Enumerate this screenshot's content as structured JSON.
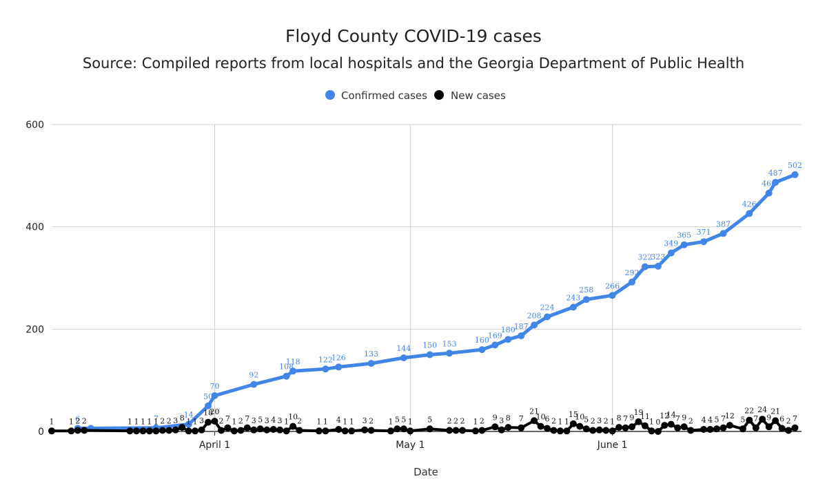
{
  "chart_data": {
    "type": "line",
    "title": "Floyd County COVID-19 cases",
    "subtitle": "Source: Compiled reports from local hospitals and the Georgia Department of Public Health",
    "xlabel": "Date",
    "ylabel": "",
    "ylim": [
      0,
      600
    ],
    "yticks": [
      0,
      200,
      400,
      600
    ],
    "xlim": [
      "2020-03-07",
      "2020-06-30"
    ],
    "xticks": [
      {
        "date": "2020-04-01",
        "label": "April 1"
      },
      {
        "date": "2020-05-01",
        "label": "May 1"
      },
      {
        "date": "2020-06-01",
        "label": "June 1"
      }
    ],
    "grid": true,
    "legend_position": "top-center",
    "series": [
      {
        "name": "Confirmed cases",
        "color": "#4285e8",
        "points": [
          [
            "2020-03-11",
            6
          ],
          [
            "2020-03-13",
            6
          ],
          [
            "2020-03-23",
            7
          ],
          [
            "2020-03-28",
            14
          ],
          [
            "2020-03-31",
            50
          ],
          [
            "2020-04-01",
            70
          ],
          [
            "2020-04-07",
            92
          ],
          [
            "2020-04-12",
            108
          ],
          [
            "2020-04-13",
            118
          ],
          [
            "2020-04-18",
            122
          ],
          [
            "2020-04-20",
            126
          ],
          [
            "2020-04-25",
            133
          ],
          [
            "2020-04-30",
            144
          ],
          [
            "2020-05-04",
            150
          ],
          [
            "2020-05-07",
            153
          ],
          [
            "2020-05-12",
            160
          ],
          [
            "2020-05-14",
            169
          ],
          [
            "2020-05-16",
            180
          ],
          [
            "2020-05-18",
            187
          ],
          [
            "2020-05-20",
            208
          ],
          [
            "2020-05-22",
            224
          ],
          [
            "2020-05-26",
            243
          ],
          [
            "2020-05-28",
            258
          ],
          [
            "2020-06-01",
            266
          ],
          [
            "2020-06-04",
            292
          ],
          [
            "2020-06-06",
            322
          ],
          [
            "2020-06-08",
            323
          ],
          [
            "2020-06-10",
            349
          ],
          [
            "2020-06-12",
            365
          ],
          [
            "2020-06-15",
            371
          ],
          [
            "2020-06-18",
            387
          ],
          [
            "2020-06-22",
            426
          ],
          [
            "2020-06-25",
            466
          ],
          [
            "2020-06-26",
            487
          ],
          [
            "2020-06-29",
            502
          ]
        ],
        "labels": [
          [
            "2020-03-11",
            "6"
          ],
          [
            "2020-03-23",
            "7"
          ],
          [
            "2020-03-28",
            "14"
          ],
          [
            "2020-03-31",
            "50"
          ],
          [
            "2020-04-01",
            "70"
          ],
          [
            "2020-04-07",
            "92"
          ],
          [
            "2020-04-12",
            "108"
          ],
          [
            "2020-04-13",
            "118"
          ],
          [
            "2020-04-18",
            "122"
          ],
          [
            "2020-04-20",
            "126"
          ],
          [
            "2020-04-25",
            "133"
          ],
          [
            "2020-04-30",
            "144"
          ],
          [
            "2020-05-04",
            "150"
          ],
          [
            "2020-05-07",
            "153"
          ],
          [
            "2020-05-12",
            "160"
          ],
          [
            "2020-05-14",
            "169"
          ],
          [
            "2020-05-16",
            "180"
          ],
          [
            "2020-05-18",
            "187"
          ],
          [
            "2020-05-20",
            "208"
          ],
          [
            "2020-05-22",
            "224"
          ],
          [
            "2020-05-26",
            "243"
          ],
          [
            "2020-05-28",
            "258"
          ],
          [
            "2020-06-01",
            "266"
          ],
          [
            "2020-06-04",
            "292"
          ],
          [
            "2020-06-06",
            "322"
          ],
          [
            "2020-06-08",
            "323"
          ],
          [
            "2020-06-10",
            "349"
          ],
          [
            "2020-06-12",
            "365"
          ],
          [
            "2020-06-15",
            "371"
          ],
          [
            "2020-06-18",
            "387"
          ],
          [
            "2020-06-22",
            "426"
          ],
          [
            "2020-06-25",
            "466"
          ],
          [
            "2020-06-26",
            "487"
          ],
          [
            "2020-06-29",
            "502"
          ]
        ]
      },
      {
        "name": "New cases",
        "color": "#000000",
        "points": [
          [
            "2020-03-07",
            1
          ],
          [
            "2020-03-10",
            1
          ],
          [
            "2020-03-11",
            2
          ],
          [
            "2020-03-12",
            2
          ],
          [
            "2020-03-19",
            1
          ],
          [
            "2020-03-20",
            1
          ],
          [
            "2020-03-21",
            1
          ],
          [
            "2020-03-22",
            1
          ],
          [
            "2020-03-23",
            1
          ],
          [
            "2020-03-24",
            2
          ],
          [
            "2020-03-25",
            2
          ],
          [
            "2020-03-26",
            3
          ],
          [
            "2020-03-27",
            8
          ],
          [
            "2020-03-28",
            1
          ],
          [
            "2020-03-29",
            1
          ],
          [
            "2020-03-30",
            3
          ],
          [
            "2020-03-31",
            18
          ],
          [
            "2020-04-01",
            20
          ],
          [
            "2020-04-02",
            2
          ],
          [
            "2020-04-03",
            7
          ],
          [
            "2020-04-04",
            1
          ],
          [
            "2020-04-05",
            2
          ],
          [
            "2020-04-06",
            7
          ],
          [
            "2020-04-07",
            3
          ],
          [
            "2020-04-08",
            5
          ],
          [
            "2020-04-09",
            3
          ],
          [
            "2020-04-10",
            4
          ],
          [
            "2020-04-11",
            3
          ],
          [
            "2020-04-12",
            1
          ],
          [
            "2020-04-13",
            10
          ],
          [
            "2020-04-14",
            2
          ],
          [
            "2020-04-17",
            1
          ],
          [
            "2020-04-18",
            1
          ],
          [
            "2020-04-20",
            4
          ],
          [
            "2020-04-21",
            1
          ],
          [
            "2020-04-22",
            1
          ],
          [
            "2020-04-24",
            3
          ],
          [
            "2020-04-25",
            2
          ],
          [
            "2020-04-28",
            1
          ],
          [
            "2020-04-29",
            5
          ],
          [
            "2020-04-30",
            5
          ],
          [
            "2020-05-01",
            1
          ],
          [
            "2020-05-04",
            5
          ],
          [
            "2020-05-07",
            2
          ],
          [
            "2020-05-08",
            2
          ],
          [
            "2020-05-09",
            2
          ],
          [
            "2020-05-11",
            1
          ],
          [
            "2020-05-12",
            2
          ],
          [
            "2020-05-14",
            9
          ],
          [
            "2020-05-15",
            3
          ],
          [
            "2020-05-16",
            8
          ],
          [
            "2020-05-18",
            7
          ],
          [
            "2020-05-20",
            21
          ],
          [
            "2020-05-21",
            10
          ],
          [
            "2020-05-22",
            6
          ],
          [
            "2020-05-23",
            2
          ],
          [
            "2020-05-24",
            1
          ],
          [
            "2020-05-25",
            1
          ],
          [
            "2020-05-26",
            15
          ],
          [
            "2020-05-27",
            10
          ],
          [
            "2020-05-28",
            5
          ],
          [
            "2020-05-29",
            2
          ],
          [
            "2020-05-30",
            3
          ],
          [
            "2020-05-31",
            2
          ],
          [
            "2020-06-01",
            1
          ],
          [
            "2020-06-02",
            8
          ],
          [
            "2020-06-03",
            7
          ],
          [
            "2020-06-04",
            9
          ],
          [
            "2020-06-05",
            19
          ],
          [
            "2020-06-06",
            11
          ],
          [
            "2020-06-07",
            1
          ],
          [
            "2020-06-08",
            0
          ],
          [
            "2020-06-09",
            12
          ],
          [
            "2020-06-10",
            14
          ],
          [
            "2020-06-11",
            7
          ],
          [
            "2020-06-12",
            9
          ],
          [
            "2020-06-13",
            2
          ],
          [
            "2020-06-15",
            4
          ],
          [
            "2020-06-16",
            4
          ],
          [
            "2020-06-17",
            5
          ],
          [
            "2020-06-18",
            7
          ],
          [
            "2020-06-19",
            12
          ],
          [
            "2020-06-21",
            5
          ],
          [
            "2020-06-22",
            22
          ],
          [
            "2020-06-23",
            7
          ],
          [
            "2020-06-24",
            24
          ],
          [
            "2020-06-25",
            9
          ],
          [
            "2020-06-26",
            21
          ],
          [
            "2020-06-27",
            6
          ],
          [
            "2020-06-28",
            2
          ],
          [
            "2020-06-29",
            7
          ]
        ],
        "labels": [
          [
            "2020-03-07",
            "1"
          ],
          [
            "2020-03-10",
            "1"
          ],
          [
            "2020-03-11",
            "2"
          ],
          [
            "2020-03-12",
            "2"
          ],
          [
            "2020-03-19",
            "1"
          ],
          [
            "2020-03-20",
            "1"
          ],
          [
            "2020-03-21",
            "1"
          ],
          [
            "2020-03-22",
            "1"
          ],
          [
            "2020-03-23",
            "1"
          ],
          [
            "2020-03-24",
            "2"
          ],
          [
            "2020-03-25",
            "2"
          ],
          [
            "2020-03-26",
            "3"
          ],
          [
            "2020-03-27",
            "8"
          ],
          [
            "2020-03-28",
            "1"
          ],
          [
            "2020-03-29",
            "1"
          ],
          [
            "2020-03-30",
            "3"
          ],
          [
            "2020-03-31",
            "18"
          ],
          [
            "2020-04-01",
            "20"
          ],
          [
            "2020-04-02",
            "2"
          ],
          [
            "2020-04-03",
            "7"
          ],
          [
            "2020-04-04",
            "1"
          ],
          [
            "2020-04-05",
            "2"
          ],
          [
            "2020-04-06",
            "7"
          ],
          [
            "2020-04-07",
            "3"
          ],
          [
            "2020-04-08",
            "5"
          ],
          [
            "2020-04-09",
            "3"
          ],
          [
            "2020-04-10",
            "4"
          ],
          [
            "2020-04-11",
            "3"
          ],
          [
            "2020-04-12",
            "1"
          ],
          [
            "2020-04-13",
            "10"
          ],
          [
            "2020-04-14",
            "2"
          ],
          [
            "2020-04-17",
            "1"
          ],
          [
            "2020-04-18",
            "1"
          ],
          [
            "2020-04-20",
            "4"
          ],
          [
            "2020-04-21",
            "1"
          ],
          [
            "2020-04-22",
            "1"
          ],
          [
            "2020-04-24",
            "3"
          ],
          [
            "2020-04-25",
            "2"
          ],
          [
            "2020-04-28",
            "1"
          ],
          [
            "2020-04-29",
            "5"
          ],
          [
            "2020-04-30",
            "5"
          ],
          [
            "2020-05-01",
            "1"
          ],
          [
            "2020-05-04",
            "5"
          ],
          [
            "2020-05-07",
            "2"
          ],
          [
            "2020-05-08",
            "2"
          ],
          [
            "2020-05-09",
            "2"
          ],
          [
            "2020-05-11",
            "1"
          ],
          [
            "2020-05-12",
            "2"
          ],
          [
            "2020-05-14",
            "9"
          ],
          [
            "2020-05-15",
            "3"
          ],
          [
            "2020-05-16",
            "8"
          ],
          [
            "2020-05-18",
            "7"
          ],
          [
            "2020-05-20",
            "21"
          ],
          [
            "2020-05-21",
            "10"
          ],
          [
            "2020-05-22",
            "6"
          ],
          [
            "2020-05-23",
            "2"
          ],
          [
            "2020-05-24",
            "1"
          ],
          [
            "2020-05-25",
            "1"
          ],
          [
            "2020-05-26",
            "15"
          ],
          [
            "2020-05-27",
            "10"
          ],
          [
            "2020-05-28",
            "5"
          ],
          [
            "2020-05-29",
            "2"
          ],
          [
            "2020-05-30",
            "3"
          ],
          [
            "2020-05-31",
            "2"
          ],
          [
            "2020-06-01",
            "1"
          ],
          [
            "2020-06-02",
            "8"
          ],
          [
            "2020-06-03",
            "7"
          ],
          [
            "2020-06-04",
            "9"
          ],
          [
            "2020-06-05",
            "19"
          ],
          [
            "2020-06-06",
            "11"
          ],
          [
            "2020-06-07",
            "1"
          ],
          [
            "2020-06-08",
            "0"
          ],
          [
            "2020-06-09",
            "12"
          ],
          [
            "2020-06-10",
            "14"
          ],
          [
            "2020-06-11",
            "7"
          ],
          [
            "2020-06-12",
            "9"
          ],
          [
            "2020-06-13",
            "2"
          ],
          [
            "2020-06-15",
            "4"
          ],
          [
            "2020-06-16",
            "4"
          ],
          [
            "2020-06-17",
            "5"
          ],
          [
            "2020-06-18",
            "7"
          ],
          [
            "2020-06-19",
            "12"
          ],
          [
            "2020-06-21",
            "5"
          ],
          [
            "2020-06-22",
            "22"
          ],
          [
            "2020-06-23",
            "7"
          ],
          [
            "2020-06-24",
            "24"
          ],
          [
            "2020-06-25",
            "9"
          ],
          [
            "2020-06-26",
            "21"
          ],
          [
            "2020-06-27",
            "6"
          ],
          [
            "2020-06-28",
            "2"
          ],
          [
            "2020-06-29",
            "7"
          ]
        ]
      }
    ]
  }
}
